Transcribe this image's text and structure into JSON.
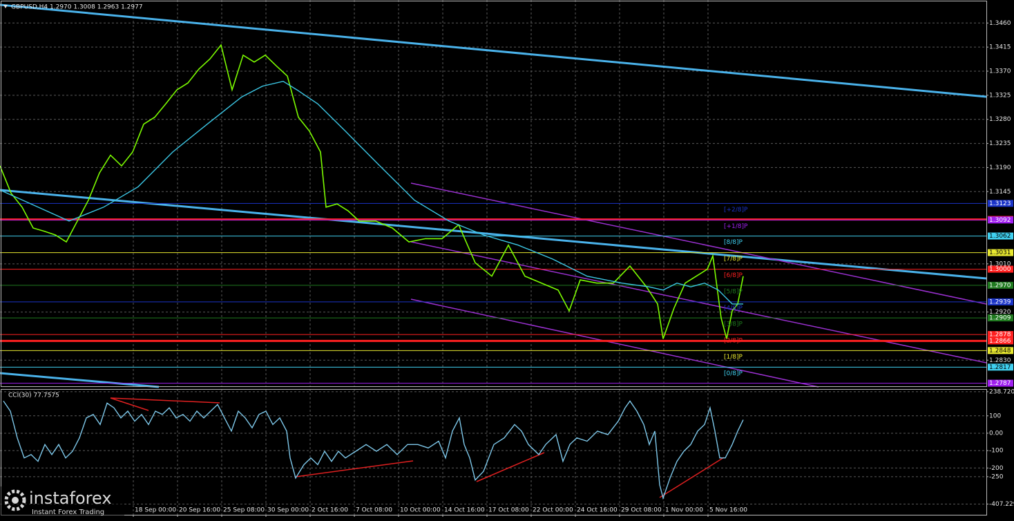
{
  "chart_data": [
    {
      "type": "line",
      "title": "GBPUSD,H4 1.2970 1.3008 1.2963 1.2977",
      "xlim": [
        0,
        1428
      ],
      "xticks": [
        {
          "value": 193,
          "label": "18 Sep 00:00"
        },
        {
          "value": 257,
          "label": "20 Sep 16:00"
        },
        {
          "value": 321,
          "label": "25 Sep 08:00"
        },
        {
          "value": 385,
          "label": "30 Sep 00:00"
        },
        {
          "value": 449,
          "label": "2 Oct 16:00"
        },
        {
          "value": 513,
          "label": "7 Oct 08:00"
        },
        {
          "value": 577,
          "label": "10 Oct 00:00"
        },
        {
          "value": 641,
          "label": "14 Oct 16:00"
        },
        {
          "value": 705,
          "label": "17 Oct 08:00"
        },
        {
          "value": 769,
          "label": "22 Oct 00:00"
        },
        {
          "value": 833,
          "label": "24 Oct 16:00"
        },
        {
          "value": 897,
          "label": "29 Oct 08:00"
        },
        {
          "value": 961,
          "label": "1 Nov 00:00"
        },
        {
          "value": 1025,
          "label": "5 Nov 16:00"
        }
      ],
      "ylim": [
        1.278,
        1.3503
      ],
      "yticks": [
        {
          "value": 1.346,
          "label": "1.3460"
        },
        {
          "value": 1.3415,
          "label": "1.3415"
        },
        {
          "value": 1.337,
          "label": "1.3370"
        },
        {
          "value": 1.3325,
          "label": "1.3325"
        },
        {
          "value": 1.328,
          "label": "1.3280"
        },
        {
          "value": 1.3235,
          "label": "1.3235"
        },
        {
          "value": 1.319,
          "label": "1.3190"
        },
        {
          "value": 1.3145,
          "label": "1.3145"
        },
        {
          "value": 1.301,
          "label": "1.3010"
        },
        {
          "value": 1.292,
          "label": "1.2920"
        },
        {
          "value": 1.283,
          "label": "1.2830"
        }
      ],
      "grid": true,
      "series": [
        {
          "color": "#7cfc00",
          "x": [
            0,
            16,
            32,
            48,
            64,
            80,
            96,
            112,
            128,
            144,
            160,
            176,
            192,
            208,
            224,
            240,
            256,
            272,
            288,
            304,
            320,
            336,
            352,
            368,
            384,
            400,
            416,
            432,
            448,
            464,
            472,
            488,
            504,
            520,
            544,
            568,
            592,
            616,
            640,
            664,
            688,
            712,
            736,
            760,
            784,
            808,
            824,
            840,
            864,
            888,
            912,
            936,
            952,
            960,
            976,
            992,
            1008,
            1024,
            1032,
            1044,
            1052,
            1060,
            1068,
            1076
          ],
          "values": [
            1.3193,
            1.3142,
            1.3116,
            1.3077,
            1.3071,
            1.3064,
            1.3051,
            1.309,
            1.3129,
            1.318,
            1.3213,
            1.3193,
            1.3219,
            1.3271,
            1.3284,
            1.3309,
            1.3335,
            1.3348,
            1.3374,
            1.3393,
            1.3419,
            1.3335,
            1.34,
            1.3387,
            1.34,
            1.338,
            1.3361,
            1.3284,
            1.3258,
            1.3219,
            1.3116,
            1.3122,
            1.3109,
            1.309,
            1.309,
            1.3077,
            1.3051,
            1.3057,
            1.3057,
            1.3083,
            1.3012,
            1.2987,
            1.3045,
            1.2987,
            1.2974,
            1.2961,
            1.2922,
            1.298,
            1.2974,
            1.2974,
            1.3006,
            1.2967,
            1.2935,
            1.287,
            1.2928,
            1.2974,
            1.2987,
            1.3,
            1.3025,
            1.2909,
            1.287,
            1.2922,
            1.2935,
            1.2987
          ]
        },
        {
          "color": "#3cc8e6",
          "x": [
            0,
            100,
            150,
            200,
            250,
            300,
            350,
            380,
            410,
            430,
            460,
            500,
            550,
            600,
            650,
            700,
            750,
            800,
            850,
            900,
            940,
            960,
            980,
            1000,
            1020,
            1040,
            1060,
            1076
          ],
          "values": [
            1.3148,
            1.309,
            1.3116,
            1.3154,
            1.3219,
            1.3271,
            1.3322,
            1.3342,
            1.3351,
            1.3335,
            1.3309,
            1.3258,
            1.3193,
            1.3129,
            1.309,
            1.3064,
            1.3045,
            1.3019,
            1.2987,
            1.2974,
            1.2967,
            1.2961,
            1.2974,
            1.2967,
            1.2974,
            1.2961,
            1.2935,
            1.2935
          ]
        }
      ],
      "levels": [
        {
          "value": 1.3123,
          "label": "1.3123",
          "color": "#1b34c8",
          "tag": "[+2/8]P"
        },
        {
          "value": 1.3093,
          "label": "1.3093",
          "color": "#ff2020",
          "thick": true
        },
        {
          "value": 1.3092,
          "label": "1.3092",
          "color": "#a020f0",
          "tag": "[+1/8]P"
        },
        {
          "value": 1.3062,
          "label": "1.3062",
          "color": "#40d0f0",
          "tag": "[8/8]P"
        },
        {
          "value": 1.3031,
          "label": "1.3031",
          "color": "#e8e830",
          "tag": "[7/8]P"
        },
        {
          "value": 1.3,
          "label": "1.3000",
          "color": "#ff2020",
          "tag": "[6/8]P"
        },
        {
          "value": 1.297,
          "label": "1.2970",
          "color": "#1f7a1f",
          "tag": "[5/8]P"
        },
        {
          "value": 1.2939,
          "label": "1.2939",
          "color": "#1b34c8",
          "tag": "[4/8]P"
        },
        {
          "value": 1.2909,
          "label": "1.2909",
          "color": "#1f7a1f",
          "tag": "[3/8]P"
        },
        {
          "value": 1.2878,
          "label": "1.2878",
          "color": "#ff2020",
          "tag": "[2/8]P"
        },
        {
          "value": 1.2866,
          "label": "1.2866",
          "color": "#ff2020",
          "thick": true
        },
        {
          "value": 1.2848,
          "label": "1.2848",
          "color": "#e8e830",
          "tag": "[1/8]P"
        },
        {
          "value": 1.2817,
          "label": "1.2817",
          "color": "#40d0f0",
          "tag": "[0/8]P"
        },
        {
          "value": 1.2787,
          "label": "1.2787",
          "color": "#a020f0"
        }
      ]
    },
    {
      "type": "line",
      "title": "CCI(30) 77.7575",
      "xlim": [
        0,
        1428
      ],
      "ylim": [
        -469,
        254
      ],
      "yticks": [
        {
          "value": 238.7205,
          "label": "238.7205"
        },
        100,
        {
          "value": 0,
          "label": "0.00"
        },
        -100,
        -200,
        -250,
        {
          "value": -407.2295,
          "label": "-407.2295"
        }
      ],
      "grid": true,
      "series": [
        {
          "color": "#7ec8ea",
          "x": [
            5,
            15,
            25,
            35,
            45,
            55,
            65,
            75,
            85,
            95,
            105,
            115,
            125,
            135,
            145,
            155,
            165,
            175,
            185,
            195,
            205,
            215,
            225,
            235,
            245,
            255,
            265,
            275,
            285,
            295,
            305,
            315,
            325,
            335,
            345,
            355,
            365,
            375,
            385,
            395,
            405,
            415,
            420,
            428,
            440,
            450,
            460,
            470,
            480,
            490,
            500,
            515,
            530,
            545,
            560,
            575,
            590,
            605,
            620,
            635,
            645,
            655,
            665,
            672,
            680,
            688,
            700,
            715,
            730,
            745,
            755,
            765,
            780,
            790,
            805,
            815,
            825,
            835,
            850,
            865,
            880,
            895,
            905,
            912,
            922,
            932,
            940,
            948,
            955,
            960,
            970,
            980,
            990,
            1000,
            1010,
            1020,
            1028,
            1035,
            1042,
            1050,
            1060,
            1068,
            1076
          ],
          "values": [
            185,
            127,
            -27,
            -142,
            -123,
            -162,
            -65,
            -123,
            -65,
            -142,
            -104,
            -27,
            88,
            108,
            50,
            173,
            146,
            88,
            127,
            69,
            108,
            50,
            127,
            108,
            146,
            88,
            108,
            69,
            127,
            88,
            127,
            165,
            88,
            12,
            127,
            88,
            31,
            108,
            127,
            50,
            88,
            12,
            -142,
            -258,
            -181,
            -142,
            -181,
            -104,
            -162,
            -104,
            -142,
            -104,
            -65,
            -104,
            -65,
            -123,
            -65,
            -65,
            -85,
            -46,
            -142,
            12,
            88,
            -65,
            -142,
            -269,
            -219,
            -65,
            -27,
            50,
            12,
            -65,
            -123,
            -65,
            -8,
            -162,
            -65,
            -27,
            -46,
            12,
            -8,
            69,
            146,
            185,
            127,
            50,
            -65,
            12,
            -296,
            -373,
            -258,
            -162,
            -104,
            -65,
            12,
            50,
            146,
            12,
            -142,
            -142,
            -65,
            12,
            77.7575
          ]
        }
      ]
    }
  ],
  "watermark": {
    "brand": "instaforex",
    "tagline": "Instant Forex Trading"
  }
}
